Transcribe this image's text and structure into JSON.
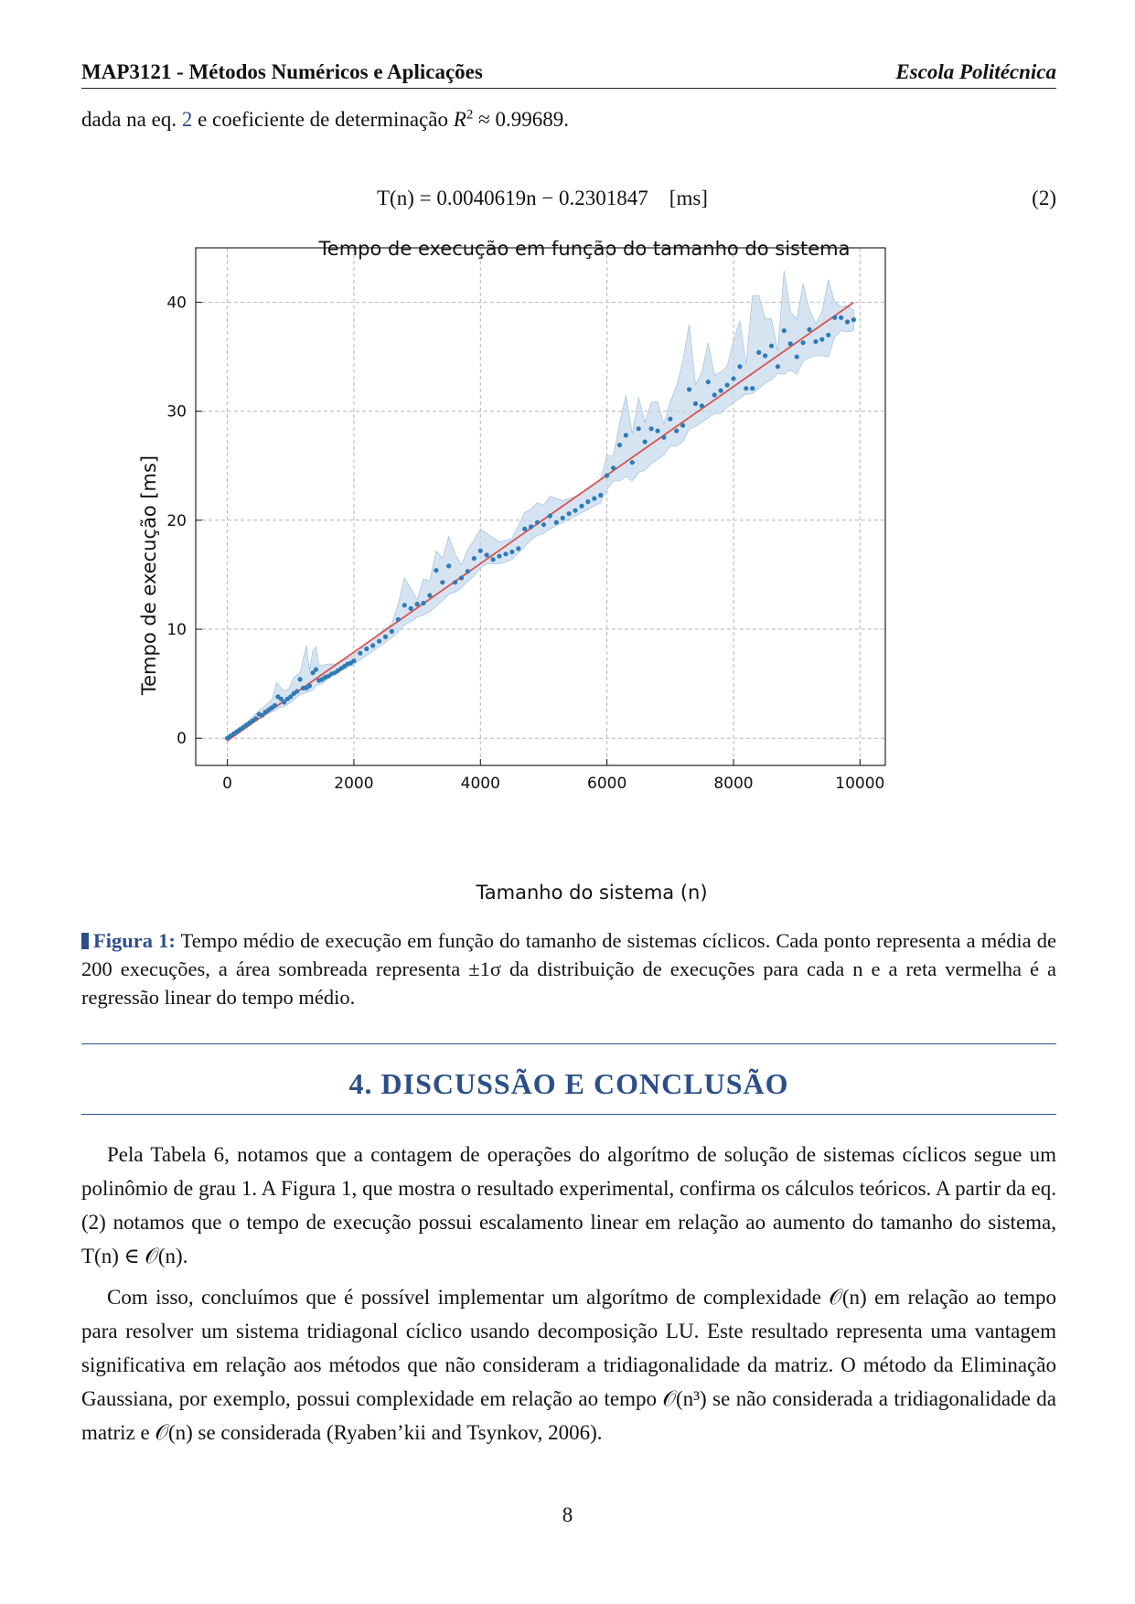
{
  "header": {
    "course": "MAP3121 - Métodos Numéricos e Aplicações",
    "school": "Escola Politécnica"
  },
  "intro": {
    "text_before_ref": "dada na eq.",
    "eq_ref": "2",
    "text_mid": "e coeficiente de determinação",
    "r2_symbol": "R",
    "r2_exp": "2",
    "r2_value": "≈ 0.99689."
  },
  "equation": {
    "text": "T(n) = 0.0040619n − 0.2301847    [ms]",
    "number": "(2)"
  },
  "chart_data": {
    "type": "scatter",
    "title": "Tempo de execução em função do tamanho do sistema",
    "xlabel": "Tamanho do sistema (n)",
    "ylabel": "Tempo de execução [ms]",
    "xlim": [
      -500,
      10400
    ],
    "ylim": [
      -2.5,
      45
    ],
    "xticks": [
      0,
      2000,
      4000,
      6000,
      8000,
      10000
    ],
    "yticks": [
      0,
      10,
      20,
      30,
      40
    ],
    "grid": true,
    "regression": {
      "slope": 0.0040619,
      "intercept": -0.2301847,
      "color": "#d9534f"
    },
    "series": [
      {
        "kind": "mean",
        "color": "#2f7bb6",
        "x": [
          0,
          50,
          100,
          150,
          200,
          250,
          300,
          350,
          400,
          450,
          500,
          550,
          600,
          650,
          700,
          750,
          800,
          850,
          900,
          950,
          1000,
          1050,
          1100,
          1150,
          1200,
          1250,
          1300,
          1350,
          1400,
          1450,
          1500,
          1550,
          1600,
          1650,
          1700,
          1750,
          1800,
          1850,
          1900,
          1950,
          2000,
          2100,
          2200,
          2300,
          2400,
          2500,
          2600,
          2700,
          2800,
          2900,
          3000,
          3100,
          3200,
          3300,
          3400,
          3500,
          3600,
          3700,
          3800,
          3900,
          4000,
          4100,
          4200,
          4300,
          4400,
          4500,
          4600,
          4700,
          4800,
          4900,
          5000,
          5100,
          5200,
          5300,
          5400,
          5500,
          5600,
          5700,
          5800,
          5900,
          6000,
          6100,
          6200,
          6300,
          6400,
          6500,
          6600,
          6700,
          6800,
          6900,
          7000,
          7100,
          7200,
          7300,
          7400,
          7500,
          7600,
          7700,
          7800,
          7900,
          8000,
          8100,
          8200,
          8300,
          8400,
          8500,
          8600,
          8700,
          8800,
          8900,
          9000,
          9100,
          9200,
          9300,
          9400,
          9500,
          9600,
          9700,
          9800,
          9900
        ],
        "y": [
          0.0,
          0.2,
          0.4,
          0.6,
          0.8,
          1.0,
          1.2,
          1.4,
          1.6,
          1.8,
          2.2,
          2.1,
          2.4,
          2.6,
          2.8,
          3.0,
          3.8,
          3.6,
          3.3,
          3.6,
          3.8,
          4.1,
          4.3,
          5.4,
          4.6,
          4.6,
          4.8,
          6.0,
          6.3,
          5.3,
          5.4,
          5.6,
          5.7,
          5.9,
          6.0,
          6.2,
          6.4,
          6.6,
          6.8,
          6.9,
          7.1,
          7.8,
          8.2,
          8.5,
          8.9,
          9.3,
          9.8,
          10.9,
          12.2,
          11.9,
          12.3,
          12.4,
          13.1,
          15.4,
          14.3,
          15.8,
          14.3,
          14.7,
          15.3,
          16.5,
          17.2,
          16.8,
          16.4,
          16.7,
          16.9,
          17.1,
          17.4,
          19.2,
          19.4,
          19.8,
          19.6,
          20.4,
          19.8,
          20.2,
          20.6,
          20.9,
          21.3,
          21.7,
          22.0,
          22.3,
          24.1,
          24.8,
          26.9,
          27.8,
          25.3,
          28.4,
          27.2,
          28.4,
          28.2,
          27.6,
          29.3,
          28.2,
          28.7,
          32.0,
          30.7,
          30.5,
          32.7,
          31.5,
          31.9,
          32.4,
          33.0,
          34.1,
          32.1,
          32.1,
          35.4,
          35.1,
          36.0,
          34.1,
          37.4,
          36.2,
          35.0,
          36.3,
          37.5,
          36.4,
          36.6,
          37.0,
          38.6,
          38.6,
          38.2,
          38.4
        ]
      },
      {
        "kind": "band_upper",
        "name": "+1σ",
        "color": "#c5d9ec",
        "x": [
          0,
          300,
          500,
          700,
          780,
          820,
          900,
          980,
          1050,
          1150,
          1250,
          1300,
          1350,
          1400,
          1450,
          1500,
          1600,
          1700,
          1900,
          2000,
          2200,
          2400,
          2600,
          2700,
          2800,
          2900,
          3000,
          3100,
          3200,
          3300,
          3400,
          3500,
          3600,
          3700,
          3800,
          3900,
          4000,
          4100,
          4300,
          4500,
          4700,
          4800,
          4900,
          5000,
          5100,
          5300,
          5500,
          5700,
          5900,
          6000,
          6100,
          6200,
          6300,
          6400,
          6500,
          6600,
          6700,
          6800,
          6900,
          7000,
          7100,
          7200,
          7300,
          7400,
          7500,
          7600,
          7700,
          7800,
          7900,
          8000,
          8100,
          8200,
          8300,
          8400,
          8500,
          8600,
          8700,
          8800,
          8900,
          9000,
          9100,
          9200,
          9300,
          9400,
          9500,
          9600,
          9700,
          9800,
          9900
        ],
        "y": [
          0.2,
          1.4,
          2.5,
          3.5,
          5.1,
          4.8,
          4.3,
          4.6,
          5.6,
          6.0,
          8.5,
          6.2,
          8.0,
          8.4,
          6.6,
          6.7,
          6.8,
          6.8,
          7.3,
          7.6,
          8.7,
          9.6,
          10.5,
          12.3,
          14.7,
          13.7,
          12.7,
          14.6,
          14.4,
          17.2,
          16.5,
          18.5,
          16.9,
          15.9,
          17.3,
          18.2,
          19.2,
          18.8,
          18.0,
          18.3,
          20.7,
          21.0,
          21.6,
          21.4,
          22.2,
          21.8,
          22.2,
          22.8,
          23.8,
          25.9,
          25.9,
          28.9,
          31.5,
          27.9,
          31.3,
          29.0,
          30.8,
          30.9,
          28.8,
          30.9,
          32.3,
          34.6,
          38.0,
          32.4,
          33.6,
          36.3,
          33.3,
          33.6,
          34.1,
          36.5,
          38.3,
          34.3,
          40.6,
          40.6,
          38.5,
          38.5,
          35.5,
          42.9,
          39.2,
          38.4,
          41.7,
          39.3,
          38.0,
          39.1,
          42.1,
          40.0,
          39.6,
          39.7,
          39.3
        ]
      },
      {
        "kind": "band_lower",
        "name": "-1σ",
        "color": "#c5d9ec",
        "x": [
          0,
          300,
          500,
          700,
          780,
          820,
          900,
          980,
          1050,
          1150,
          1250,
          1300,
          1350,
          1400,
          1450,
          1500,
          1600,
          1700,
          1900,
          2000,
          2200,
          2400,
          2600,
          2700,
          2800,
          2900,
          3000,
          3100,
          3200,
          3300,
          3400,
          3500,
          3600,
          3700,
          3800,
          3900,
          4000,
          4100,
          4300,
          4500,
          4700,
          4800,
          4900,
          5000,
          5100,
          5300,
          5500,
          5700,
          5900,
          6000,
          6100,
          6200,
          6300,
          6400,
          6500,
          6600,
          6700,
          6800,
          6900,
          7000,
          7100,
          7200,
          7300,
          7400,
          7500,
          7600,
          7700,
          7800,
          7900,
          8000,
          8100,
          8200,
          8300,
          8400,
          8500,
          8600,
          8700,
          8800,
          8900,
          9000,
          9100,
          9200,
          9300,
          9400,
          9500,
          9600,
          9700,
          9800,
          9900
        ],
        "y": [
          -0.2,
          1.0,
          1.8,
          2.4,
          2.6,
          2.8,
          2.9,
          3.2,
          3.5,
          4.0,
          4.2,
          4.3,
          4.4,
          4.8,
          4.9,
          5.0,
          5.5,
          5.9,
          6.5,
          6.8,
          7.6,
          8.4,
          9.2,
          9.8,
          10.4,
          10.7,
          11.1,
          11.3,
          11.6,
          12.1,
          12.6,
          13.2,
          13.4,
          13.8,
          14.4,
          14.9,
          15.6,
          16.0,
          16.0,
          16.4,
          17.6,
          18.2,
          18.6,
          18.8,
          19.2,
          19.8,
          20.4,
          21.0,
          21.6,
          22.8,
          23.6,
          23.6,
          24.0,
          23.6,
          24.4,
          24.6,
          25.2,
          25.6,
          26.0,
          26.8,
          26.8,
          27.2,
          28.4,
          28.6,
          29.0,
          29.4,
          29.8,
          29.8,
          30.4,
          30.8,
          31.2,
          31.6,
          31.6,
          32.1,
          32.6,
          32.9,
          33.5,
          33.4,
          33.8,
          33.4,
          34.6,
          34.9,
          35.1,
          35.1,
          35.0,
          36.8,
          37.4,
          37.3,
          37.4
        ]
      }
    ]
  },
  "caption": {
    "label": "Figura 1:",
    "text": "Tempo médio de execução em função do tamanho de sistemas cíclicos. Cada ponto representa a média de 200 execuções, a área sombreada representa ±1σ da distribuição de execuções para cada n e a reta vermelha é a regressão linear do tempo médio."
  },
  "section": {
    "title": "4. DISCUSSÃO E CONCLUSÃO"
  },
  "paragraphs": {
    "p1": "Pela Tabela 6, notamos que a contagem de operações do algorítmo de solução de sistemas cíclicos segue um polinômio de grau 1. A Figura 1, que mostra o resultado experimental, confirma os cálculos teóricos. A partir da eq. (2) notamos que o tempo de execução possui escalamento linear em relação ao aumento do tamanho do sistema, T(n) ∈ 𝒪(n).",
    "p2": "Com isso, concluímos que é possível implementar um algorítmo de complexidade 𝒪(n) em relação ao tempo para resolver um sistema tridiagonal cíclico usando decomposição LU. Este resultado representa uma vantagem significativa em relação aos métodos que não consideram a tridiagonalidade da matriz. O método da Eliminação Gaussiana, por exemplo, possui complexidade em relação ao tempo 𝒪(n³) se não considerada a tridiagonalidade da matriz e 𝒪(n) se considerada (Ryaben’kii and Tsynkov, 2006)."
  },
  "page_number": "8"
}
